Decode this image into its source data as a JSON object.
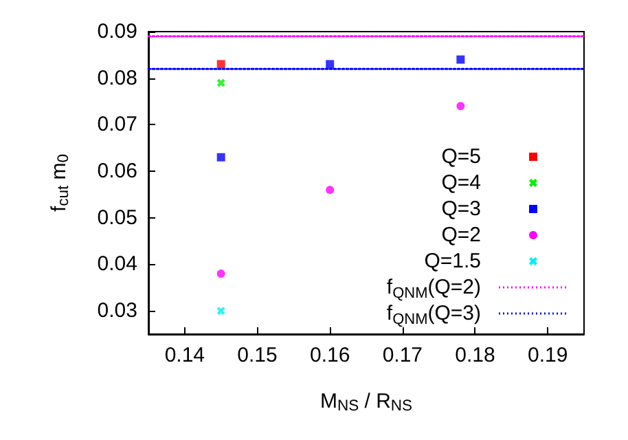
{
  "chart_data": {
    "type": "scatter",
    "xlabel": "M$_{NS}$ / R$_{NS}$",
    "ylabel": "f$_{cut}$ m$_{0}$",
    "xlim": [
      0.135,
      0.195
    ],
    "xticks": [
      0.14,
      0.15,
      0.16,
      0.17,
      0.18,
      0.19
    ],
    "ylim": [
      0.025,
      0.09
    ],
    "yticks": [
      0.03,
      0.04,
      0.05,
      0.06,
      0.07,
      0.08,
      0.09
    ],
    "grid": false,
    "legend": "right",
    "series": [
      {
        "name": "Q=5",
        "color": "#ff0000",
        "marker": "square",
        "x": [
          0.145
        ],
        "values": [
          0.083
        ]
      },
      {
        "name": "Q=4",
        "color": "#00ee00",
        "marker": "cross",
        "x": [
          0.145
        ],
        "values": [
          0.079
        ]
      },
      {
        "name": "Q=3",
        "color": "#0000ff",
        "marker": "square",
        "x": [
          0.145,
          0.16,
          0.178
        ],
        "values": [
          0.063,
          0.083,
          0.084
        ]
      },
      {
        "name": "Q=2",
        "color": "#ff00ff",
        "marker": "circle",
        "x": [
          0.145,
          0.16,
          0.178
        ],
        "values": [
          0.038,
          0.056,
          0.074
        ]
      },
      {
        "name": "Q=1.5",
        "color": "#00eeee",
        "marker": "cross",
        "x": [
          0.145
        ],
        "values": [
          0.03
        ]
      },
      {
        "name": "f$_{QNM}$(Q=2)",
        "type": "line",
        "line_style": "dotted",
        "color": "#ff00ff",
        "x": [
          0.135,
          0.195
        ],
        "values": [
          0.089,
          0.089
        ]
      },
      {
        "name": "f$_{QNM}$(Q=3)",
        "type": "line",
        "line_style": "dotted",
        "color": "#0000ff",
        "x": [
          0.135,
          0.195
        ],
        "values": [
          0.082,
          0.082
        ]
      }
    ]
  }
}
